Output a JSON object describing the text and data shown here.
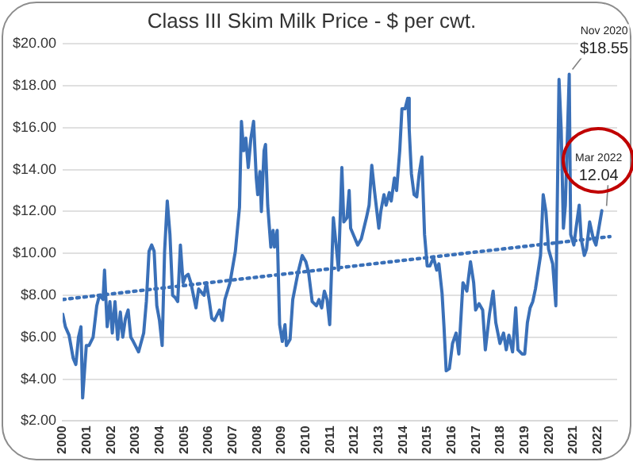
{
  "chart_data": {
    "type": "line",
    "title": "Class III Skim Milk Price - $ per cwt.",
    "xlim": [
      2000,
      2022.8
    ],
    "xticks": [
      2000,
      2001,
      2002,
      2003,
      2004,
      2005,
      2006,
      2007,
      2008,
      2009,
      2010,
      2011,
      2012,
      2013,
      2014,
      2015,
      2016,
      2017,
      2018,
      2019,
      2020,
      2021,
      2022
    ],
    "ylim": [
      2,
      20
    ],
    "yticks": [
      {
        "value": 2,
        "label": "$2.00"
      },
      {
        "value": 4,
        "label": "$4.00"
      },
      {
        "value": 6,
        "label": "$6.00"
      },
      {
        "value": 8,
        "label": "$8.00"
      },
      {
        "value": 10,
        "label": "$10.00"
      },
      {
        "value": 12,
        "label": "$12.00"
      },
      {
        "value": 14,
        "label": "$14.00"
      },
      {
        "value": 16,
        "label": "$16.00"
      },
      {
        "value": 18,
        "label": "$18.00"
      },
      {
        "value": 20,
        "label": "$20.00"
      }
    ],
    "grid": "y",
    "legend": false,
    "marker": "none",
    "series": [
      {
        "type": "line",
        "color": "#3a70b8",
        "line_style": "solid",
        "x": [
          2000.0,
          2000.11,
          2000.26,
          2000.43,
          2000.54,
          2000.65,
          2000.75,
          2000.82,
          2000.97,
          2001.08,
          2001.25,
          2001.4,
          2001.51,
          2001.66,
          2001.72,
          2001.83,
          2001.94,
          2002.04,
          2002.15,
          2002.26,
          2002.37,
          2002.47,
          2002.58,
          2002.69,
          2002.8,
          2002.9,
          2003.12,
          2003.33,
          2003.44,
          2003.55,
          2003.66,
          2003.76,
          2003.87,
          2003.98,
          2004.09,
          2004.19,
          2004.3,
          2004.41,
          2004.52,
          2004.62,
          2004.73,
          2004.84,
          2004.95,
          2005.05,
          2005.16,
          2005.27,
          2005.48,
          2005.59,
          2005.81,
          2005.91,
          2006.02,
          2006.13,
          2006.24,
          2006.45,
          2006.56,
          2006.67,
          2006.88,
          2007.1,
          2007.27,
          2007.35,
          2007.44,
          2007.53,
          2007.63,
          2007.74,
          2007.85,
          2007.96,
          2008.02,
          2008.11,
          2008.17,
          2008.28,
          2008.34,
          2008.43,
          2008.56,
          2008.65,
          2008.71,
          2008.82,
          2008.92,
          2009.03,
          2009.14,
          2009.2,
          2009.35,
          2009.46,
          2009.68,
          2009.85,
          2010.0,
          2010.11,
          2010.26,
          2010.43,
          2010.54,
          2010.65,
          2010.76,
          2010.87,
          2010.98,
          2011.13,
          2011.26,
          2011.34,
          2011.48,
          2011.56,
          2011.69,
          2011.78,
          2011.84,
          2011.95,
          2012.13,
          2012.28,
          2012.49,
          2012.6,
          2012.71,
          2012.82,
          2013.0,
          2013.08,
          2013.21,
          2013.3,
          2013.43,
          2013.51,
          2013.64,
          2013.73,
          2013.86,
          2013.95,
          2014.08,
          2014.19,
          2014.25,
          2014.34,
          2014.45,
          2014.56,
          2014.66,
          2014.77,
          2014.88,
          2014.99,
          2015.1,
          2015.25,
          2015.38,
          2015.47,
          2015.6,
          2015.68,
          2015.77,
          2015.9,
          2016.03,
          2016.18,
          2016.29,
          2016.46,
          2016.62,
          2016.77,
          2016.9,
          2016.98,
          2017.12,
          2017.27,
          2017.38,
          2017.55,
          2017.7,
          2017.81,
          2017.98,
          2018.13,
          2018.24,
          2018.35,
          2018.5,
          2018.63,
          2018.72,
          2018.89,
          2019.0,
          2019.11,
          2019.22,
          2019.33,
          2019.44,
          2019.65,
          2019.76,
          2019.87,
          2019.98,
          2020.15,
          2020.28,
          2020.41,
          2020.5,
          2020.59,
          2020.67,
          2020.83,
          2020.89,
          2021.02,
          2021.11,
          2021.24,
          2021.32,
          2021.45,
          2021.54,
          2021.67,
          2021.82,
          2021.93,
          2022.17
        ],
        "values": [
          7.1,
          6.5,
          6.1,
          5.0,
          4.7,
          6.0,
          6.5,
          3.1,
          5.6,
          5.6,
          6.0,
          7.5,
          8.0,
          7.8,
          9.2,
          6.5,
          7.7,
          6.2,
          7.7,
          5.9,
          7.2,
          6.0,
          6.9,
          7.3,
          6.0,
          5.8,
          5.3,
          6.2,
          7.7,
          10.1,
          10.4,
          10.1,
          7.5,
          6.8,
          5.6,
          10.1,
          12.5,
          10.9,
          8.0,
          7.9,
          7.7,
          10.4,
          8.6,
          8.9,
          9.0,
          8.6,
          7.4,
          8.3,
          8.0,
          8.6,
          7.8,
          6.9,
          6.8,
          7.3,
          6.8,
          7.8,
          8.6,
          10.1,
          12.2,
          16.3,
          14.9,
          15.5,
          14.1,
          15.5,
          16.3,
          13.6,
          12.8,
          13.9,
          12.0,
          14.9,
          15.2,
          12.3,
          10.3,
          11.1,
          10.3,
          11.1,
          6.6,
          5.8,
          6.6,
          5.6,
          5.9,
          7.8,
          9.1,
          9.9,
          9.6,
          9.1,
          7.7,
          7.5,
          7.8,
          7.4,
          8.2,
          7.8,
          6.6,
          11.7,
          10.2,
          9.2,
          14.1,
          11.5,
          11.7,
          13.0,
          11.2,
          10.9,
          10.4,
          10.7,
          11.7,
          12.3,
          14.2,
          13.0,
          11.2,
          12.0,
          12.8,
          12.3,
          12.9,
          12.5,
          13.6,
          13.0,
          14.9,
          16.9,
          16.9,
          17.4,
          15.9,
          13.8,
          12.8,
          12.7,
          13.8,
          14.6,
          10.9,
          9.4,
          9.4,
          9.8,
          9.2,
          9.5,
          8.1,
          6.5,
          4.4,
          4.5,
          5.7,
          6.2,
          5.2,
          8.6,
          8.2,
          9.6,
          8.6,
          7.3,
          7.6,
          7.3,
          5.4,
          7.1,
          8.2,
          6.7,
          5.7,
          6.2,
          5.4,
          6.1,
          5.3,
          7.4,
          5.4,
          5.2,
          5.2,
          6.7,
          7.4,
          7.7,
          8.3,
          9.9,
          12.8,
          12.0,
          10.2,
          9.5,
          7.5,
          18.3,
          15.9,
          11.2,
          12.3,
          18.55,
          10.9,
          10.4,
          11.2,
          12.3,
          10.7,
          9.9,
          10.2,
          11.5,
          10.7,
          10.4,
          12.04
        ]
      },
      {
        "type": "line",
        "color": "#3a70b8",
        "line_style": "dotted",
        "x": [
          2000,
          2022.5
        ],
        "values": [
          7.8,
          10.8
        ]
      }
    ],
    "annotations": [
      {
        "text": "Nov 2020\n$18.55",
        "x": 2020.83,
        "y": 18.55
      },
      {
        "text": "Mar 2022\n12.04",
        "x": 2022.17,
        "y": 12.04
      }
    ]
  }
}
